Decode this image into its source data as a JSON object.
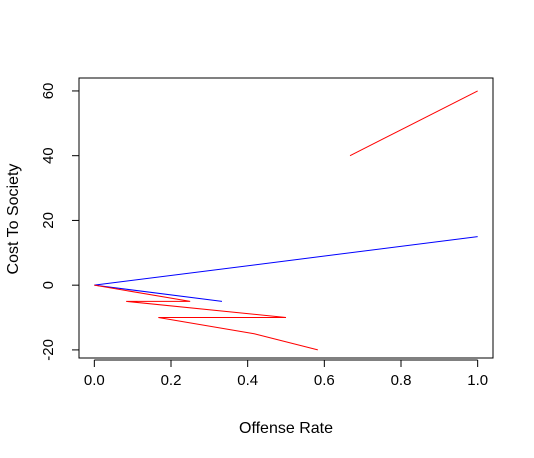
{
  "chart_data": {
    "type": "line",
    "title": "",
    "xlabel": "Offense Rate",
    "ylabel": "Cost To Society",
    "xlim": [
      -0.04,
      1.04
    ],
    "ylim": [
      -22.5,
      64
    ],
    "x_ticks": [
      0.0,
      0.2,
      0.4,
      0.6,
      0.8,
      1.0
    ],
    "x_tick_labels": [
      "0.0",
      "0.2",
      "0.4",
      "0.6",
      "0.8",
      "1.0"
    ],
    "y_ticks": [
      -20,
      0,
      20,
      40,
      60
    ],
    "y_tick_labels": [
      "-20",
      "0",
      "20",
      "40",
      "60"
    ],
    "grid": false,
    "legend": "none",
    "series": [
      {
        "color": "#ff0000",
        "points": [
          {
            "x": 0.667,
            "y": 40
          },
          {
            "x": 1.0,
            "y": 60
          }
        ]
      },
      {
        "color": "#0000ff",
        "points": [
          {
            "x": 0.333,
            "y": -5
          },
          {
            "x": 0.0,
            "y": 0
          },
          {
            "x": 1.0,
            "y": 15
          }
        ]
      },
      {
        "color": "#ff0000",
        "points": [
          {
            "x": 0.0,
            "y": 0
          },
          {
            "x": 0.25,
            "y": -5
          },
          {
            "x": 0.083,
            "y": -5
          },
          {
            "x": 0.5,
            "y": -10
          },
          {
            "x": 0.167,
            "y": -10
          },
          {
            "x": 0.417,
            "y": -15
          },
          {
            "x": 0.583,
            "y": -20
          }
        ]
      }
    ]
  }
}
